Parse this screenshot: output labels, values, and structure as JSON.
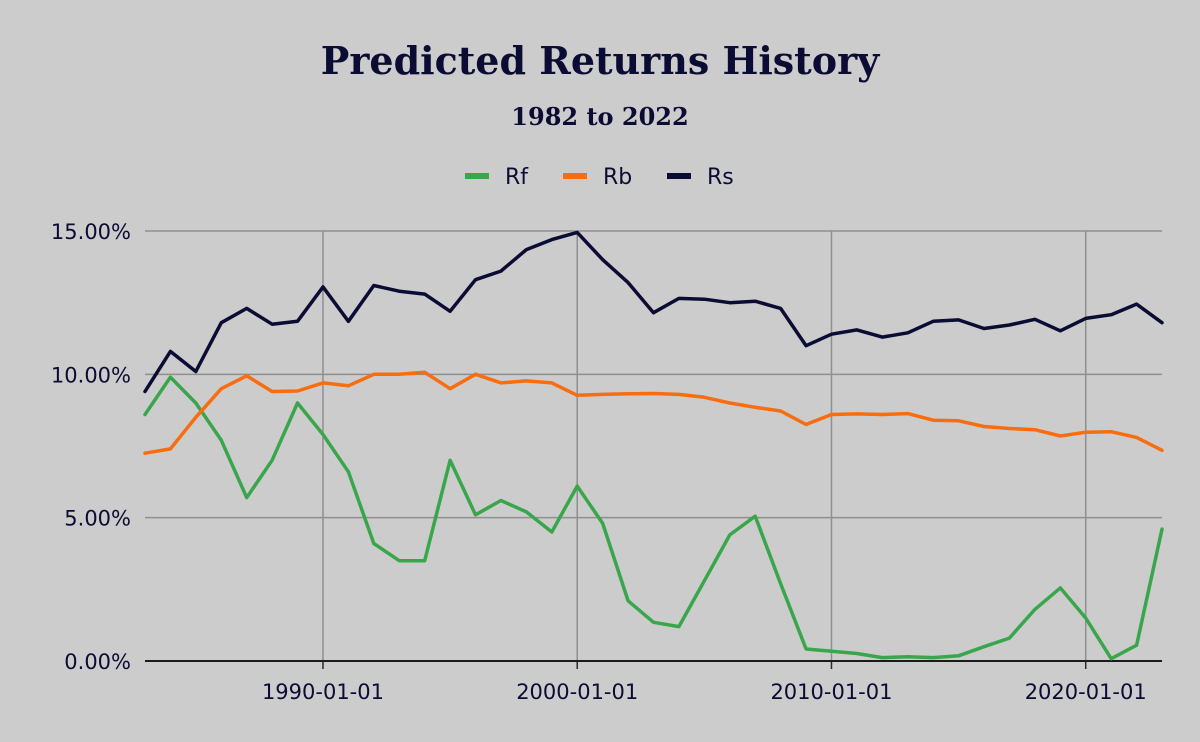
{
  "chart_data": {
    "type": "line",
    "title": "Predicted Returns History",
    "subtitle": "1982 to 2022",
    "xlabel": "",
    "ylabel": "",
    "x": [
      1983,
      1984,
      1985,
      1986,
      1987,
      1988,
      1989,
      1990,
      1991,
      1992,
      1993,
      1994,
      1995,
      1996,
      1997,
      1998,
      1999,
      2000,
      2001,
      2002,
      2003,
      2004,
      2005,
      2006,
      2007,
      2008,
      2009,
      2010,
      2011,
      2012,
      2013,
      2014,
      2015,
      2016,
      2017,
      2018,
      2019,
      2020,
      2021,
      2022,
      2023
    ],
    "x_range": [
      1983,
      2023
    ],
    "x_ticks": [
      1990,
      2000,
      2010,
      2020
    ],
    "x_tick_labels": [
      "1990-01-01",
      "2000-01-01",
      "2010-01-01",
      "2020-01-01"
    ],
    "ylim": [
      0,
      15
    ],
    "y_ticks": [
      0,
      5,
      10,
      15
    ],
    "y_tick_labels": [
      "0.00%",
      "5.00%",
      "10.00%",
      "15.00%"
    ],
    "grid": true,
    "legend_position": "top-center",
    "series": [
      {
        "name": "Rf",
        "color": "#3aa64c",
        "values": [
          8.6,
          9.9,
          9.0,
          7.7,
          5.7,
          7.0,
          9.0,
          7.9,
          6.6,
          4.1,
          3.5,
          3.5,
          7.0,
          5.1,
          5.6,
          5.2,
          4.5,
          6.1,
          4.8,
          2.1,
          1.35,
          1.2,
          2.8,
          4.4,
          5.05,
          2.7,
          0.42,
          0.34,
          0.26,
          0.12,
          0.15,
          0.12,
          0.18,
          0.5,
          0.8,
          1.8,
          2.55,
          1.5,
          0.08,
          0.55,
          4.6
        ]
      },
      {
        "name": "Rb",
        "color": "#f86d10",
        "values": [
          7.25,
          7.4,
          8.5,
          9.5,
          9.95,
          9.4,
          9.42,
          9.7,
          9.6,
          10.0,
          10.0,
          10.07,
          9.5,
          10.0,
          9.7,
          9.77,
          9.7,
          9.27,
          9.3,
          9.32,
          9.33,
          9.3,
          9.2,
          9.0,
          8.85,
          8.72,
          8.25,
          8.6,
          8.62,
          8.6,
          8.63,
          8.4,
          8.38,
          8.18,
          8.11,
          8.07,
          7.85,
          7.98,
          8.0,
          7.8,
          7.35
        ]
      },
      {
        "name": "Rs",
        "color": "#0b0c33",
        "values": [
          9.4,
          10.8,
          10.1,
          11.8,
          12.3,
          11.75,
          11.85,
          13.05,
          11.85,
          13.1,
          12.9,
          12.8,
          12.2,
          13.3,
          13.6,
          14.35,
          14.7,
          14.95,
          14.0,
          13.2,
          12.15,
          12.65,
          12.62,
          12.5,
          12.55,
          12.3,
          11.0,
          11.4,
          11.55,
          11.3,
          11.45,
          11.85,
          11.9,
          11.6,
          11.72,
          11.92,
          11.52,
          11.95,
          12.08,
          12.45,
          11.8
        ]
      }
    ]
  }
}
